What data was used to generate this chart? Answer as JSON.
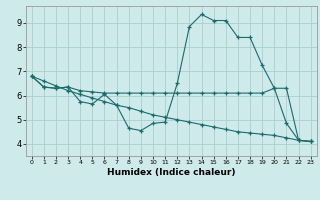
{
  "xlabel": "Humidex (Indice chaleur)",
  "bg_color": "#ceeaea",
  "grid_color": "#aacece",
  "line_color": "#1a6b6b",
  "xlim": [
    -0.5,
    23.5
  ],
  "ylim": [
    3.5,
    9.7
  ],
  "yticks": [
    4,
    5,
    6,
    7,
    8,
    9
  ],
  "xticks": [
    0,
    1,
    2,
    3,
    4,
    5,
    6,
    7,
    8,
    9,
    10,
    11,
    12,
    13,
    14,
    15,
    16,
    17,
    18,
    19,
    20,
    21,
    22,
    23
  ],
  "line1_x": [
    0,
    1,
    2,
    3,
    4,
    5,
    6,
    7,
    8,
    9,
    10,
    11,
    12,
    13,
    14,
    15,
    16,
    17,
    18,
    19,
    20,
    21,
    22,
    23
  ],
  "line1_y": [
    6.8,
    6.35,
    6.3,
    6.35,
    5.75,
    5.65,
    6.05,
    5.6,
    4.65,
    4.55,
    4.85,
    4.9,
    6.5,
    8.85,
    9.35,
    9.1,
    9.1,
    8.4,
    8.4,
    7.25,
    6.3,
    4.85,
    4.15,
    4.1
  ],
  "line2_x": [
    0,
    1,
    2,
    3,
    4,
    5,
    6,
    7,
    8,
    9,
    10,
    11,
    12,
    13,
    14,
    15,
    16,
    17,
    18,
    19,
    20,
    21,
    22,
    23
  ],
  "line2_y": [
    6.8,
    6.35,
    6.3,
    6.35,
    6.2,
    6.15,
    6.1,
    6.1,
    6.1,
    6.1,
    6.1,
    6.1,
    6.1,
    6.1,
    6.1,
    6.1,
    6.1,
    6.1,
    6.1,
    6.1,
    6.3,
    6.3,
    4.15,
    4.1
  ],
  "line3_x": [
    0,
    1,
    2,
    3,
    4,
    5,
    6,
    7,
    8,
    9,
    10,
    11,
    12,
    13,
    14,
    15,
    16,
    17,
    18,
    19,
    20,
    21,
    22,
    23
  ],
  "line3_y": [
    6.8,
    6.6,
    6.4,
    6.2,
    6.05,
    5.9,
    5.75,
    5.6,
    5.5,
    5.35,
    5.2,
    5.1,
    5.0,
    4.9,
    4.8,
    4.7,
    4.6,
    4.5,
    4.45,
    4.4,
    4.35,
    4.25,
    4.15,
    4.1
  ]
}
